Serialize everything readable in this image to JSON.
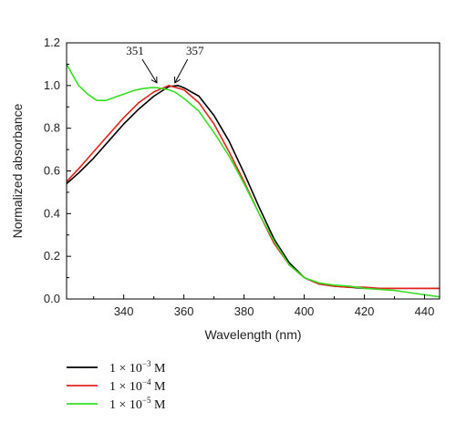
{
  "chart_data": {
    "type": "line",
    "title": "",
    "xlabel": "Wavelength (nm)",
    "ylabel": "Normalized absorbance",
    "xlim": [
      321,
      445
    ],
    "ylim": [
      0,
      1.2
    ],
    "xticks": [
      340,
      360,
      380,
      400,
      420,
      440
    ],
    "yticks": [
      0.0,
      0.2,
      0.4,
      0.6,
      0.8,
      1.0,
      1.2
    ],
    "grid": false,
    "legend_position": "bottom-left, below plot",
    "annotations": [
      {
        "text": "351",
        "x": 351,
        "y": 1.0
      },
      {
        "text": "357",
        "x": 357,
        "y": 1.0
      }
    ],
    "series": [
      {
        "name": "1 × 10−3 M",
        "legend": {
          "base": "1 × 10",
          "exp": "−3",
          "unit": " M"
        },
        "color": "#000000",
        "x": [
          321,
          325,
          330,
          335,
          340,
          345,
          350,
          355,
          358,
          360,
          365,
          370,
          375,
          380,
          385,
          390,
          395,
          400,
          405,
          410,
          415,
          420,
          425,
          430,
          435,
          440,
          445
        ],
        "y": [
          0.54,
          0.59,
          0.66,
          0.74,
          0.82,
          0.89,
          0.95,
          0.995,
          1.0,
          0.99,
          0.95,
          0.86,
          0.74,
          0.59,
          0.43,
          0.28,
          0.17,
          0.1,
          0.07,
          0.06,
          0.055,
          0.05,
          0.05,
          0.05,
          0.05,
          0.05,
          0.05
        ]
      },
      {
        "name": "1 × 10−4 M",
        "legend": {
          "base": "1 × 10",
          "exp": "−4",
          "unit": " M"
        },
        "color": "#e3231c",
        "x": [
          321,
          325,
          330,
          335,
          340,
          345,
          350,
          355,
          360,
          365,
          370,
          375,
          380,
          385,
          390,
          395,
          400,
          405,
          410,
          415,
          420,
          425,
          430,
          435,
          440,
          445
        ],
        "y": [
          0.55,
          0.61,
          0.69,
          0.77,
          0.85,
          0.92,
          0.97,
          1.0,
          0.98,
          0.92,
          0.82,
          0.69,
          0.55,
          0.4,
          0.26,
          0.16,
          0.1,
          0.07,
          0.06,
          0.055,
          0.055,
          0.05,
          0.05,
          0.05,
          0.05,
          0.05
        ]
      },
      {
        "name": "1 × 10−5 M",
        "legend": {
          "base": "1 × 10",
          "exp": "−5",
          "unit": " M"
        },
        "color": "#35e022",
        "x": [
          321,
          323,
          325,
          328,
          331,
          334,
          337,
          340,
          343,
          346,
          349,
          351,
          353,
          355,
          357,
          360,
          365,
          370,
          375,
          380,
          385,
          390,
          395,
          400,
          405,
          410,
          415,
          420,
          425,
          430,
          435,
          440,
          445
        ],
        "y": [
          1.1,
          1.05,
          1.0,
          0.96,
          0.93,
          0.93,
          0.945,
          0.96,
          0.975,
          0.985,
          0.99,
          0.99,
          0.985,
          0.98,
          0.97,
          0.94,
          0.88,
          0.78,
          0.67,
          0.54,
          0.4,
          0.27,
          0.16,
          0.1,
          0.075,
          0.065,
          0.06,
          0.05,
          0.045,
          0.04,
          0.03,
          0.02,
          0.01
        ]
      }
    ]
  }
}
